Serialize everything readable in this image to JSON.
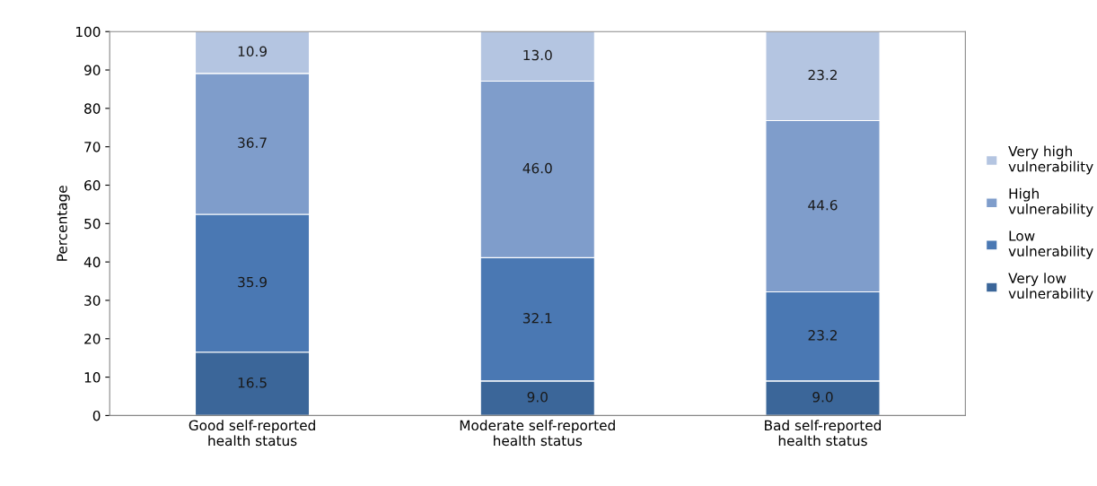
{
  "chart_data": {
    "type": "bar",
    "stacked": true,
    "ylabel": "Percentage",
    "categories": [
      "Good self-reported\nhealth status",
      "Moderate self-reported\nhealth status",
      "Bad self-reported\nhealth status"
    ],
    "series": [
      {
        "name": "Very low\nvulnerability",
        "color": "#3b6699",
        "values": [
          16.5,
          9.0,
          9.0
        ],
        "value_labels": [
          "16.5",
          "9.0",
          "9.0"
        ]
      },
      {
        "name": "Low\nvulnerability",
        "color": "#4a78b3",
        "values": [
          35.9,
          32.1,
          23.2
        ],
        "value_labels": [
          "35.9",
          "32.1",
          "23.2"
        ]
      },
      {
        "name": "High\nvulnerability",
        "color": "#7f9dcb",
        "values": [
          36.7,
          46.0,
          44.6
        ],
        "value_labels": [
          "36.7",
          "46.0",
          "44.6"
        ]
      },
      {
        "name": "Very high\nvulnerability",
        "color": "#b4c5e1",
        "values": [
          10.9,
          13.0,
          23.2
        ],
        "value_labels": [
          "10.9",
          "13.0",
          "23.2"
        ]
      }
    ],
    "ylim": [
      0,
      100
    ],
    "yticks": [
      0,
      10,
      20,
      30,
      40,
      50,
      60,
      70,
      80,
      90,
      100
    ],
    "legend": "right",
    "grid": false
  }
}
